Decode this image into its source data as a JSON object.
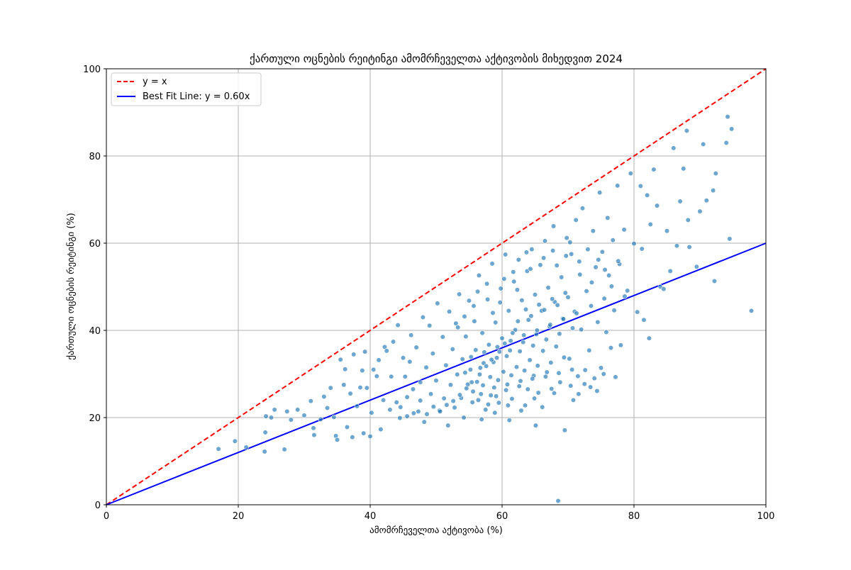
{
  "chart_data": {
    "type": "scatter",
    "title": "ქართული ოცნების რეიტინგი ამომრჩეველთა აქტივობის მიხედვით 2024",
    "xlabel": "ამომრჩეველთა აქტივობა (%)",
    "ylabel": "ქართული ოცნების რეიტინგი (%)",
    "xlim": [
      0,
      100
    ],
    "ylim": [
      0,
      100
    ],
    "x_ticks": [
      0,
      20,
      40,
      60,
      80,
      100
    ],
    "y_ticks": [
      0,
      20,
      40,
      60,
      80,
      100
    ],
    "grid": true,
    "legend_position": "top-left",
    "legend": [
      {
        "label": "y = x",
        "color": "#ff0000",
        "style": "dashed"
      },
      {
        "label": "Best Fit Line: y = 0.60x",
        "color": "#0000ff",
        "style": "solid"
      }
    ],
    "lines": [
      {
        "name": "y = x",
        "slope": 1.0,
        "color": "#ff0000",
        "style": "dashed"
      },
      {
        "name": "Best Fit Line: y = 0.60x",
        "slope": 0.6,
        "color": "#0000ff",
        "style": "solid"
      }
    ],
    "scatter_color": "#1f77b4",
    "points": [
      [
        17.0,
        12.8
      ],
      [
        19.5,
        14.6
      ],
      [
        21.2,
        13.2
      ],
      [
        24.0,
        12.2
      ],
      [
        24.1,
        16.6
      ],
      [
        24.2,
        20.3
      ],
      [
        25.0,
        20.0
      ],
      [
        25.5,
        21.8
      ],
      [
        27.0,
        12.7
      ],
      [
        27.4,
        21.4
      ],
      [
        28.0,
        19.5
      ],
      [
        29.0,
        21.8
      ],
      [
        30.0,
        20.5
      ],
      [
        31.0,
        23.8
      ],
      [
        31.4,
        17.6
      ],
      [
        31.5,
        16.0
      ],
      [
        32.5,
        19.6
      ],
      [
        33.0,
        24.8
      ],
      [
        33.5,
        22.2
      ],
      [
        34.0,
        26.8
      ],
      [
        34.5,
        20.1
      ],
      [
        34.8,
        15.8
      ],
      [
        35.0,
        14.9
      ],
      [
        35.5,
        33.3
      ],
      [
        36.0,
        27.5
      ],
      [
        36.2,
        31.1
      ],
      [
        36.5,
        17.8
      ],
      [
        37.0,
        25.5
      ],
      [
        37.3,
        15.5
      ],
      [
        37.5,
        34.5
      ],
      [
        38.0,
        22.6
      ],
      [
        38.5,
        26.9
      ],
      [
        38.8,
        30.8
      ],
      [
        39.0,
        16.4
      ],
      [
        39.2,
        35.1
      ],
      [
        39.5,
        26.8
      ],
      [
        40.0,
        15.7
      ],
      [
        40.2,
        21.1
      ],
      [
        40.5,
        31.0
      ],
      [
        41.0,
        29.5
      ],
      [
        41.3,
        33.2
      ],
      [
        41.6,
        17.3
      ],
      [
        42.0,
        24.0
      ],
      [
        42.2,
        36.2
      ],
      [
        42.5,
        35.3
      ],
      [
        43.0,
        21.8
      ],
      [
        43.2,
        29.4
      ],
      [
        43.5,
        37.4
      ],
      [
        44.0,
        23.5
      ],
      [
        44.2,
        41.2
      ],
      [
        44.5,
        19.9
      ],
      [
        45.0,
        33.7
      ],
      [
        45.3,
        29.4
      ],
      [
        45.6,
        24.7
      ],
      [
        46.0,
        32.8
      ],
      [
        46.2,
        38.9
      ],
      [
        46.5,
        26.5
      ],
      [
        47.0,
        36.1
      ],
      [
        47.3,
        21.4
      ],
      [
        47.6,
        28.1
      ],
      [
        48.0,
        43.0
      ],
      [
        48.2,
        19.0
      ],
      [
        48.5,
        31.5
      ],
      [
        49.0,
        41.1
      ],
      [
        49.2,
        25.4
      ],
      [
        49.5,
        34.7
      ],
      [
        50.0,
        28.5
      ],
      [
        50.2,
        46.2
      ],
      [
        50.5,
        21.6
      ],
      [
        51.0,
        38.5
      ],
      [
        51.2,
        24.4
      ],
      [
        51.5,
        32.0
      ],
      [
        51.8,
        18.2
      ],
      [
        52.0,
        44.3
      ],
      [
        52.2,
        27.5
      ],
      [
        52.5,
        35.7
      ],
      [
        52.8,
        22.3
      ],
      [
        53.0,
        41.6
      ],
      [
        53.2,
        29.9
      ],
      [
        53.5,
        48.3
      ],
      [
        53.8,
        24.5
      ],
      [
        54.0,
        33.4
      ],
      [
        54.2,
        20.0
      ],
      [
        54.5,
        38.6
      ],
      [
        54.8,
        27.6
      ],
      [
        55.0,
        46.8
      ],
      [
        55.2,
        31.0
      ],
      [
        55.5,
        23.5
      ],
      [
        55.8,
        42.1
      ],
      [
        56.0,
        35.5
      ],
      [
        56.2,
        28.2
      ],
      [
        56.5,
        52.6
      ],
      [
        56.8,
        25.4
      ],
      [
        57.0,
        39.4
      ],
      [
        57.2,
        32.5
      ],
      [
        57.5,
        21.8
      ],
      [
        57.8,
        47.1
      ],
      [
        58.0,
        36.7
      ],
      [
        58.2,
        29.3
      ],
      [
        58.5,
        55.3
      ],
      [
        58.8,
        26.9
      ],
      [
        59.0,
        41.8
      ],
      [
        59.2,
        33.7
      ],
      [
        59.5,
        23.4
      ],
      [
        59.8,
        49.6
      ],
      [
        60.0,
        38.2
      ],
      [
        60.2,
        30.5
      ],
      [
        60.5,
        57.4
      ],
      [
        60.8,
        27.6
      ],
      [
        61.0,
        44.5
      ],
      [
        61.2,
        35.4
      ],
      [
        61.5,
        24.3
      ],
      [
        61.8,
        51.2
      ],
      [
        62.0,
        40.1
      ],
      [
        62.2,
        31.6
      ],
      [
        62.5,
        56.2
      ],
      [
        62.8,
        28.4
      ],
      [
        63.0,
        46.9
      ],
      [
        63.2,
        37.3
      ],
      [
        63.5,
        22.8
      ],
      [
        63.8,
        53.6
      ],
      [
        64.0,
        42.4
      ],
      [
        64.2,
        33.2
      ],
      [
        64.5,
        58.6
      ],
      [
        64.8,
        29.6
      ],
      [
        65.0,
        48.2
      ],
      [
        65.2,
        39.1
      ],
      [
        65.5,
        25.7
      ],
      [
        65.8,
        55.0
      ],
      [
        66.0,
        44.5
      ],
      [
        66.2,
        35.3
      ],
      [
        66.5,
        60.5
      ],
      [
        66.8,
        30.4
      ],
      [
        67.0,
        49.8
      ],
      [
        67.2,
        40.9
      ],
      [
        67.5,
        26.6
      ],
      [
        67.8,
        63.9
      ],
      [
        68.0,
        46.5
      ],
      [
        68.2,
        36.3
      ],
      [
        68.5,
        0.9
      ],
      [
        68.8,
        28.1
      ],
      [
        69.0,
        52.2
      ],
      [
        69.2,
        42.7
      ],
      [
        69.5,
        17.1
      ],
      [
        69.8,
        61.2
      ],
      [
        70.0,
        47.6
      ],
      [
        70.2,
        33.5
      ],
      [
        70.5,
        57.5
      ],
      [
        70.8,
        24.0
      ],
      [
        71.0,
        44.3
      ],
      [
        71.2,
        65.3
      ],
      [
        71.5,
        29.5
      ],
      [
        71.8,
        52.8
      ],
      [
        72.0,
        40.2
      ],
      [
        72.2,
        68.0
      ],
      [
        72.5,
        27.7
      ],
      [
        72.8,
        49.0
      ],
      [
        73.0,
        58.6
      ],
      [
        73.2,
        35.4
      ],
      [
        73.5,
        45.6
      ],
      [
        73.8,
        62.8
      ],
      [
        74.0,
        29.0
      ],
      [
        74.2,
        54.5
      ],
      [
        74.5,
        41.9
      ],
      [
        74.8,
        71.6
      ],
      [
        75.0,
        31.4
      ],
      [
        75.2,
        58.0
      ],
      [
        75.5,
        47.3
      ],
      [
        75.8,
        39.6
      ],
      [
        76.0,
        65.8
      ],
      [
        76.2,
        52.6
      ],
      [
        76.5,
        36.0
      ],
      [
        76.8,
        60.7
      ],
      [
        77.0,
        44.6
      ],
      [
        77.2,
        29.3
      ],
      [
        77.5,
        73.2
      ],
      [
        77.8,
        55.2
      ],
      [
        78.0,
        36.6
      ],
      [
        78.5,
        63.1
      ],
      [
        79.0,
        49.1
      ],
      [
        79.5,
        76.0
      ],
      [
        80.0,
        59.9
      ],
      [
        80.5,
        44.2
      ],
      [
        81.0,
        73.1
      ],
      [
        81.2,
        58.7
      ],
      [
        81.5,
        42.4
      ],
      [
        82.0,
        71.0
      ],
      [
        82.3,
        38.2
      ],
      [
        82.5,
        64.3
      ],
      [
        83.0,
        76.9
      ],
      [
        83.5,
        68.6
      ],
      [
        84.0,
        50.0
      ],
      [
        84.5,
        49.5
      ],
      [
        85.0,
        62.8
      ],
      [
        85.5,
        53.6
      ],
      [
        86.0,
        81.8
      ],
      [
        86.5,
        59.4
      ],
      [
        87.0,
        69.6
      ],
      [
        87.5,
        77.1
      ],
      [
        88.0,
        85.8
      ],
      [
        88.2,
        65.3
      ],
      [
        88.4,
        59.1
      ],
      [
        89.5,
        54.6
      ],
      [
        90.0,
        67.3
      ],
      [
        90.5,
        82.7
      ],
      [
        91.0,
        69.8
      ],
      [
        92.0,
        72.1
      ],
      [
        92.2,
        51.3
      ],
      [
        92.4,
        76.0
      ],
      [
        94.0,
        83.0
      ],
      [
        94.2,
        89.0
      ],
      [
        94.5,
        61.0
      ],
      [
        94.8,
        86.2
      ],
      [
        97.8,
        44.5
      ],
      [
        55.6,
        26.0
      ],
      [
        56.4,
        24.0
      ],
      [
        57.1,
        27.4
      ],
      [
        58.3,
        25.1
      ],
      [
        59.4,
        28.6
      ],
      [
        60.6,
        26.3
      ],
      [
        61.4,
        29.7
      ],
      [
        62.6,
        27.2
      ],
      [
        63.4,
        30.8
      ],
      [
        64.6,
        28.9
      ],
      [
        65.4,
        31.9
      ],
      [
        66.6,
        29.4
      ],
      [
        67.4,
        32.6
      ],
      [
        68.6,
        30.2
      ],
      [
        69.4,
        33.8
      ],
      [
        70.6,
        31.0
      ],
      [
        54.4,
        30.3
      ],
      [
        55.3,
        33.9
      ],
      [
        56.7,
        31.4
      ],
      [
        57.3,
        35.0
      ],
      [
        58.7,
        32.7
      ],
      [
        59.3,
        36.2
      ],
      [
        60.7,
        34.1
      ],
      [
        61.3,
        37.6
      ],
      [
        62.7,
        35.2
      ],
      [
        63.3,
        38.9
      ],
      [
        64.7,
        36.5
      ],
      [
        65.3,
        40.0
      ],
      [
        66.7,
        37.9
      ],
      [
        67.3,
        41.3
      ],
      [
        68.7,
        39.2
      ],
      [
        69.3,
        42.6
      ],
      [
        70.7,
        40.5
      ],
      [
        71.3,
        43.9
      ],
      [
        62.4,
        42.1
      ],
      [
        63.6,
        44.8
      ],
      [
        64.4,
        43.3
      ],
      [
        65.6,
        45.9
      ],
      [
        66.4,
        44.7
      ],
      [
        67.6,
        47.2
      ],
      [
        68.4,
        45.8
      ],
      [
        69.6,
        48.6
      ],
      [
        61.6,
        39.4
      ],
      [
        60.4,
        37.0
      ],
      [
        59.6,
        35.1
      ],
      [
        58.4,
        33.3
      ],
      [
        57.6,
        31.8
      ],
      [
        56.6,
        29.9
      ],
      [
        55.4,
        28.1
      ],
      [
        54.6,
        26.7
      ],
      [
        53.6,
        25.2
      ],
      [
        52.6,
        23.8
      ],
      [
        51.6,
        22.9
      ],
      [
        50.6,
        21.4
      ],
      [
        49.6,
        22.5
      ],
      [
        48.6,
        20.8
      ],
      [
        47.6,
        23.9
      ],
      [
        46.6,
        21.0
      ],
      [
        45.6,
        20.3
      ],
      [
        44.6,
        22.4
      ],
      [
        73.4,
        27.0
      ],
      [
        74.4,
        26.1
      ],
      [
        75.4,
        30.0
      ],
      [
        72.6,
        30.9
      ],
      [
        71.6,
        25.4
      ],
      [
        70.4,
        27.3
      ],
      [
        53.3,
        40.7
      ],
      [
        54.3,
        43.2
      ],
      [
        55.7,
        45.6
      ],
      [
        56.3,
        48.9
      ],
      [
        57.7,
        50.7
      ],
      [
        58.6,
        44.0
      ],
      [
        59.7,
        46.4
      ],
      [
        60.3,
        51.8
      ],
      [
        61.7,
        53.4
      ],
      [
        62.3,
        49.3
      ],
      [
        63.7,
        57.9
      ],
      [
        64.3,
        54.1
      ],
      [
        66.3,
        56.6
      ],
      [
        67.7,
        58.3
      ],
      [
        68.3,
        54.9
      ],
      [
        69.7,
        57.1
      ],
      [
        70.3,
        60.2
      ],
      [
        71.7,
        55.8
      ],
      [
        73.6,
        51.0
      ],
      [
        74.6,
        56.2
      ],
      [
        75.6,
        53.9
      ],
      [
        76.6,
        50.1
      ],
      [
        77.6,
        55.9
      ],
      [
        78.6,
        47.8
      ],
      [
        64.9,
        24.4
      ],
      [
        66.1,
        22.4
      ],
      [
        62.9,
        21.6
      ],
      [
        60.9,
        22.8
      ],
      [
        58.9,
        21.1
      ],
      [
        56.9,
        19.6
      ],
      [
        61.1,
        19.4
      ],
      [
        65.1,
        18.2
      ],
      [
        59.1,
        24.9
      ],
      [
        57.9,
        23.0
      ],
      [
        63.9,
        26.5
      ],
      [
        67.9,
        25.6
      ]
    ]
  }
}
